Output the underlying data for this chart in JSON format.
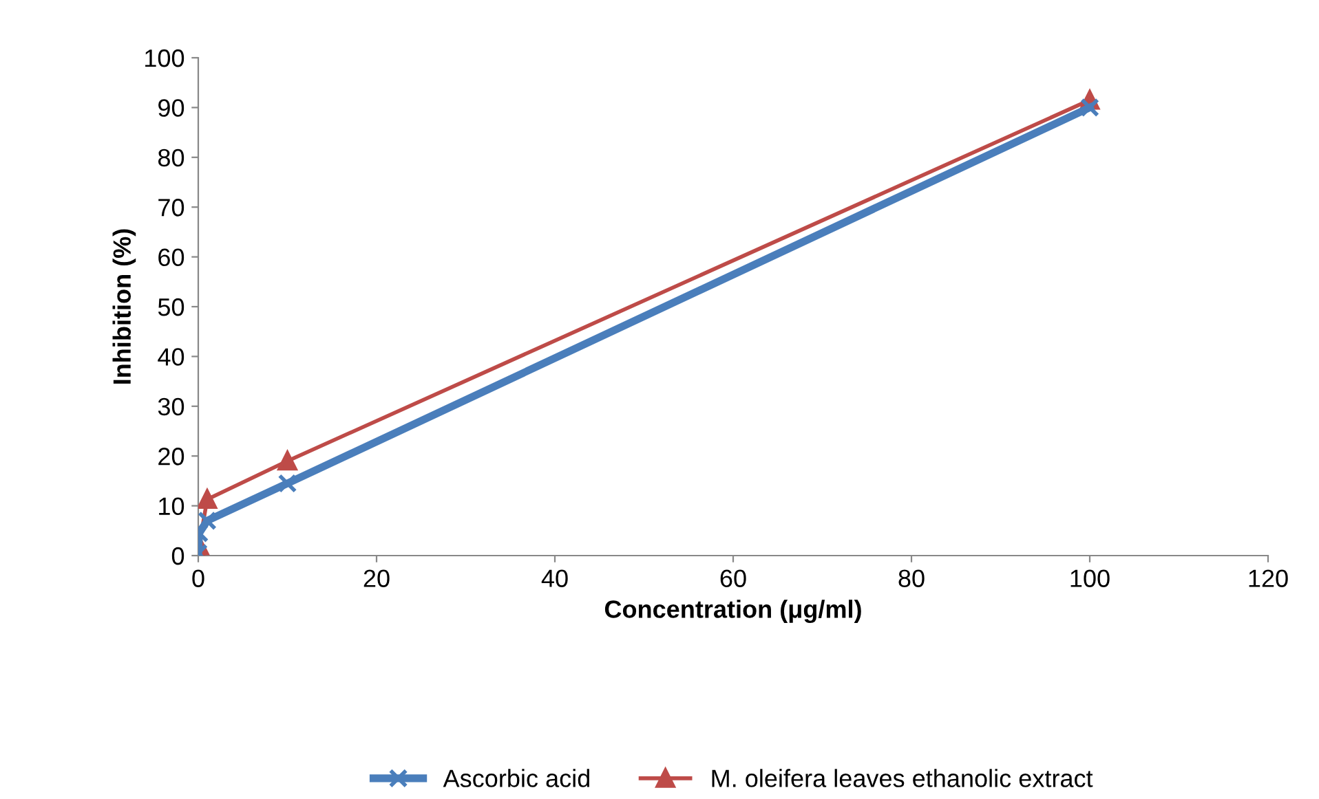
{
  "chart_data": {
    "type": "line",
    "xlabel": "Concentration (μg/ml)",
    "ylabel": "Inhibition (%)",
    "xlim": [
      0,
      120
    ],
    "xticks": [
      0,
      20,
      40,
      60,
      80,
      100,
      120
    ],
    "ylim": [
      0,
      100
    ],
    "yticks": [
      0,
      10,
      20,
      30,
      40,
      50,
      60,
      70,
      80,
      90,
      100
    ],
    "grid": false,
    "legend": "bottom",
    "series": [
      {
        "name": "Ascorbic acid",
        "color": "#4a7ebb",
        "marker": "cross",
        "x": [
          0.01,
          0.1,
          1,
          10,
          100
        ],
        "values": [
          0.5,
          4.5,
          7,
          14.5,
          90
        ]
      },
      {
        "name": "M. oleifera leaves ethanolic extract",
        "color": "#be4b48",
        "marker": "triangle",
        "x": [
          0.01,
          0.1,
          1,
          10,
          100
        ],
        "values": [
          0.5,
          2,
          11.3,
          19,
          91.5
        ]
      }
    ]
  }
}
